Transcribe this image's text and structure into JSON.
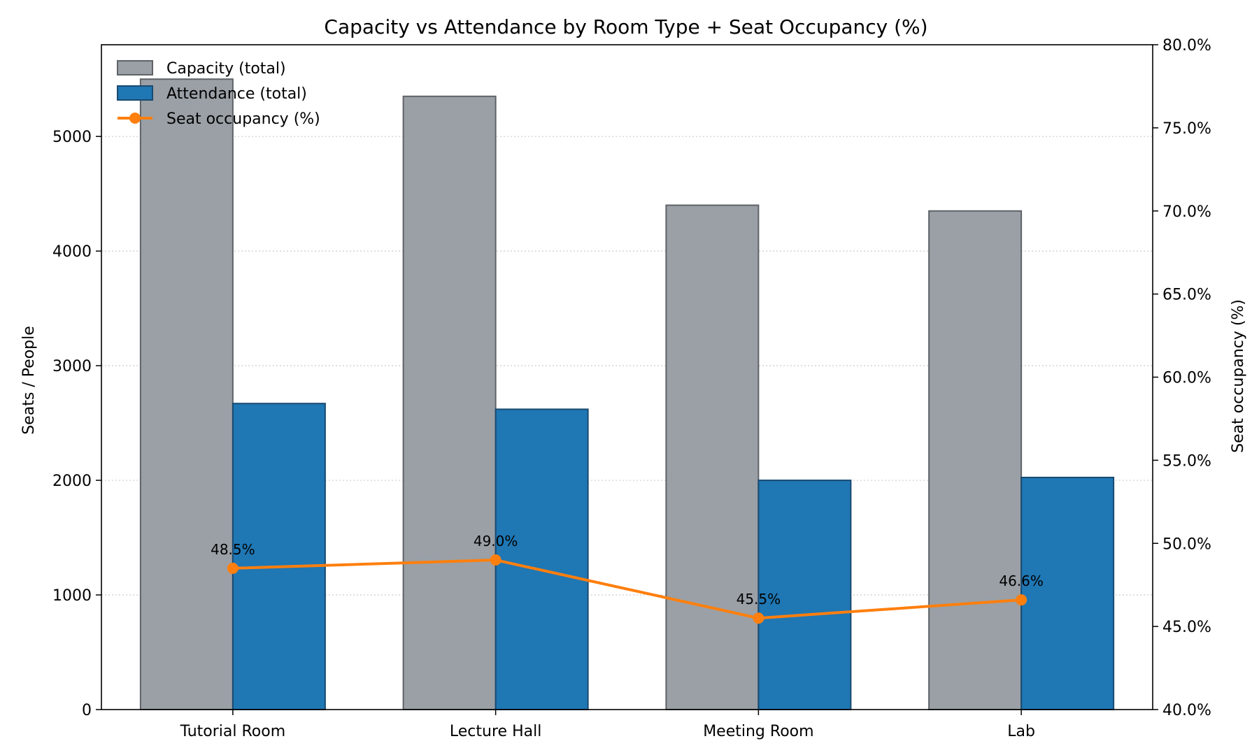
{
  "chart_data": {
    "type": "bar",
    "title": "Capacity vs Attendance by Room Type + Seat Occupancy (%)",
    "xlabel": "",
    "ylabel": "Seats / People",
    "y2label": "Seat occupancy (%)",
    "categories": [
      "Tutorial Room",
      "Lecture Hall",
      "Meeting Room",
      "Lab"
    ],
    "series": [
      {
        "name": "Capacity (total)",
        "type": "bar",
        "axis": "left",
        "values": [
          5500,
          5350,
          4400,
          4350
        ],
        "color": "#9aa0a6",
        "edge": "#5f6368"
      },
      {
        "name": "Attendance (total)",
        "type": "bar",
        "axis": "left",
        "values": [
          2670,
          2620,
          2000,
          2025
        ],
        "color": "#1f77b4",
        "edge": "#1a4a70"
      },
      {
        "name": "Seat occupancy (%)",
        "type": "line",
        "axis": "right",
        "values": [
          48.5,
          49.0,
          45.5,
          46.6
        ],
        "color": "#ff7f0e"
      }
    ],
    "data_labels": [
      "48.5%",
      "49.0%",
      "45.5%",
      "46.6%"
    ],
    "ylim": [
      0,
      5800
    ],
    "yticks": [
      0,
      1000,
      2000,
      3000,
      4000,
      5000
    ],
    "y2lim": [
      40,
      80
    ],
    "y2ticks": [
      "40.0%",
      "45.0%",
      "50.0%",
      "55.0%",
      "60.0%",
      "65.0%",
      "70.0%",
      "75.0%",
      "80.0%"
    ],
    "y2tick_values": [
      40,
      45,
      50,
      55,
      60,
      65,
      70,
      75,
      80
    ],
    "grid": "horizontal dotted",
    "legend_position": "top-left"
  }
}
